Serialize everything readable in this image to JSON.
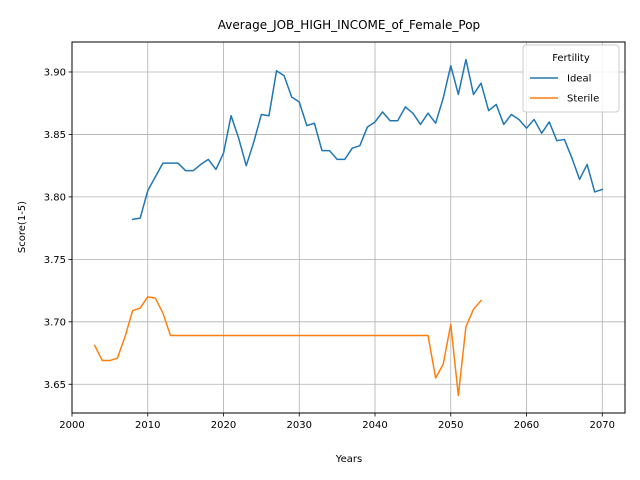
{
  "chart_data": {
    "type": "line",
    "title": "Average_JOB_HIGH_INCOME_of_Female_Pop",
    "xlabel": "Years",
    "ylabel": "Score(1-5)",
    "xlim": [
      2000,
      2073
    ],
    "ylim": [
      3.627,
      3.924
    ],
    "xticks": [
      2000,
      2010,
      2020,
      2030,
      2040,
      2050,
      2060,
      2070
    ],
    "xtick_labels": [
      "2000",
      "2010",
      "2020",
      "2030",
      "2040",
      "2050",
      "2060",
      "2070"
    ],
    "yticks": [
      3.65,
      3.7,
      3.75,
      3.8,
      3.85,
      3.9
    ],
    "ytick_labels": [
      "3.65",
      "3.70",
      "3.75",
      "3.80",
      "3.85",
      "3.90"
    ],
    "grid": true,
    "legend": {
      "title": "Fertility",
      "placement": "top-right"
    },
    "series": [
      {
        "name": "Ideal",
        "color": "#1f77b4",
        "x": [
          2008,
          2009,
          2010,
          2011,
          2012,
          2013,
          2014,
          2015,
          2016,
          2017,
          2018,
          2019,
          2020,
          2021,
          2022,
          2023,
          2024,
          2025,
          2026,
          2027,
          2028,
          2029,
          2030,
          2031,
          2032,
          2033,
          2034,
          2035,
          2036,
          2037,
          2038,
          2039,
          2040,
          2041,
          2042,
          2043,
          2044,
          2045,
          2046,
          2047,
          2048,
          2049,
          2050,
          2051,
          2052,
          2053,
          2054,
          2055,
          2056,
          2057,
          2058,
          2059,
          2060,
          2061,
          2062,
          2063,
          2064,
          2065,
          2066,
          2067,
          2068,
          2069,
          2070
        ],
        "values": [
          3.782,
          3.783,
          3.805,
          3.816,
          3.827,
          3.827,
          3.827,
          3.821,
          3.821,
          3.826,
          3.83,
          3.822,
          3.835,
          3.865,
          3.847,
          3.825,
          3.844,
          3.866,
          3.865,
          3.901,
          3.897,
          3.88,
          3.876,
          3.857,
          3.859,
          3.837,
          3.837,
          3.83,
          3.83,
          3.839,
          3.841,
          3.856,
          3.86,
          3.868,
          3.861,
          3.861,
          3.872,
          3.867,
          3.858,
          3.867,
          3.859,
          3.879,
          3.905,
          3.882,
          3.91,
          3.882,
          3.891,
          3.869,
          3.874,
          3.858,
          3.866,
          3.862,
          3.855,
          3.862,
          3.851,
          3.86,
          3.845,
          3.846,
          3.831,
          3.814,
          3.826,
          3.804,
          3.806
        ]
      },
      {
        "name": "Sterile",
        "color": "#ff7f0e",
        "x": [
          2003,
          2004,
          2005,
          2006,
          2007,
          2008,
          2009,
          2010,
          2011,
          2012,
          2013,
          2014,
          2015,
          2016,
          2017,
          2018,
          2019,
          2020,
          2021,
          2022,
          2023,
          2024,
          2025,
          2026,
          2027,
          2028,
          2029,
          2030,
          2031,
          2032,
          2033,
          2034,
          2035,
          2036,
          2037,
          2038,
          2039,
          2040,
          2041,
          2042,
          2043,
          2044,
          2045,
          2046,
          2047,
          2048,
          2049,
          2050,
          2051,
          2052,
          2053,
          2054
        ],
        "values": [
          3.681,
          3.669,
          3.669,
          3.671,
          3.688,
          3.709,
          3.711,
          3.72,
          3.719,
          3.707,
          3.689,
          3.689,
          3.689,
          3.689,
          3.689,
          3.689,
          3.689,
          3.689,
          3.689,
          3.689,
          3.689,
          3.689,
          3.689,
          3.689,
          3.689,
          3.689,
          3.689,
          3.689,
          3.689,
          3.689,
          3.689,
          3.689,
          3.689,
          3.689,
          3.689,
          3.689,
          3.689,
          3.689,
          3.689,
          3.689,
          3.689,
          3.689,
          3.689,
          3.689,
          3.689,
          3.655,
          3.666,
          3.698,
          3.641,
          3.696,
          3.71,
          3.717
        ]
      }
    ]
  }
}
